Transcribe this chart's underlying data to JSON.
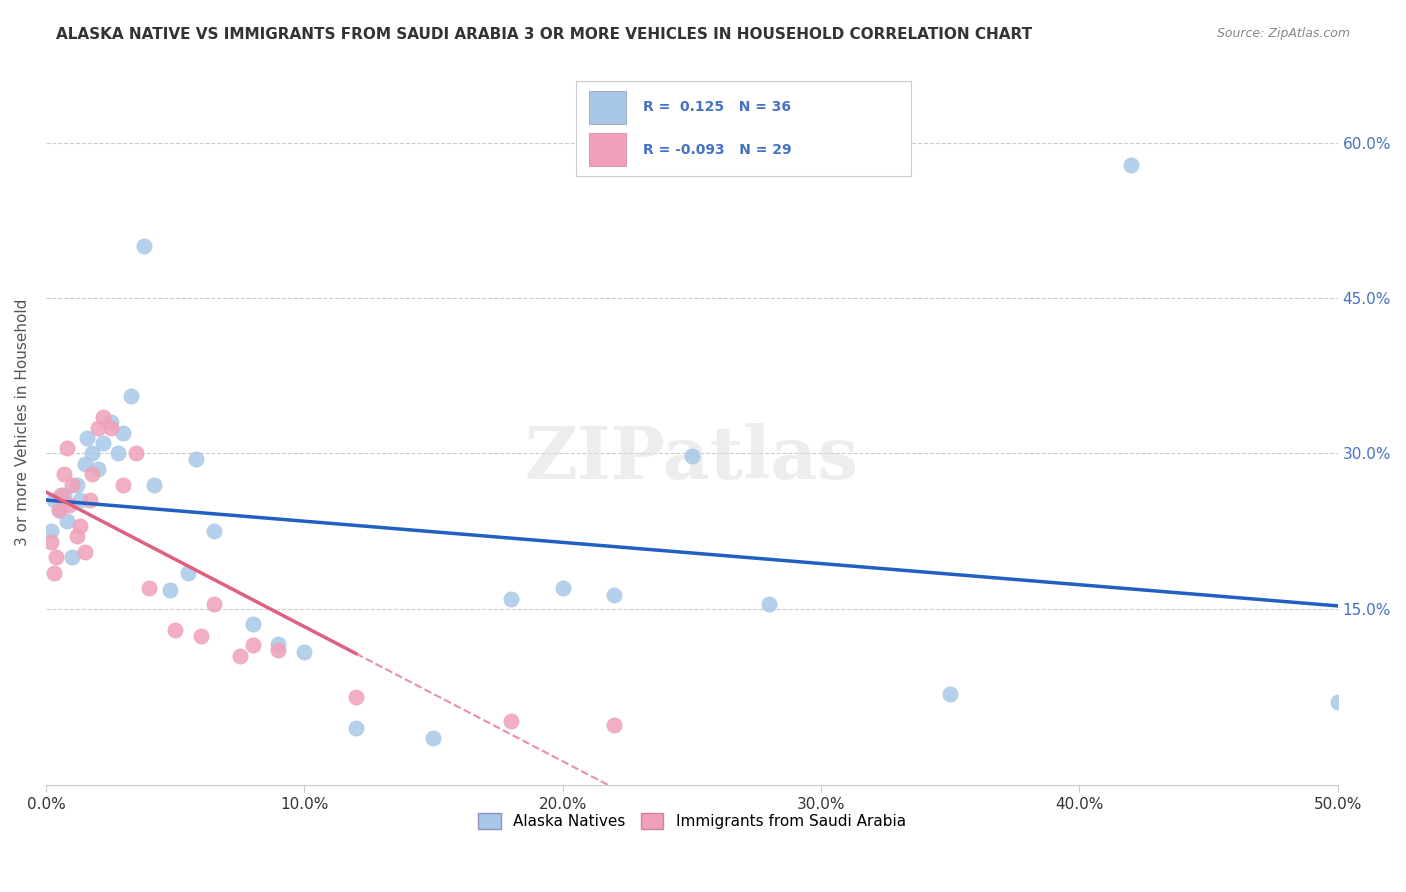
{
  "title": "ALASKA NATIVE VS IMMIGRANTS FROM SAUDI ARABIA 3 OR MORE VEHICLES IN HOUSEHOLD CORRELATION CHART",
  "source": "Source: ZipAtlas.com",
  "ylabel": "3 or more Vehicles in Household",
  "ytick_labels": [
    "15.0%",
    "30.0%",
    "45.0%",
    "60.0%"
  ],
  "ytick_values": [
    0.15,
    0.3,
    0.45,
    0.6
  ],
  "xtick_labels": [
    "0.0%",
    "10.0%",
    "20.0%",
    "30.0%",
    "40.0%",
    "50.0%"
  ],
  "xtick_values": [
    0.0,
    0.1,
    0.2,
    0.3,
    0.4,
    0.5
  ],
  "xlim": [
    0.0,
    0.5
  ],
  "ylim": [
    -0.02,
    0.68
  ],
  "legend_label1": "Alaska Natives",
  "legend_label2": "Immigrants from Saudi Arabia",
  "R1": 0.125,
  "N1": 36,
  "R2": -0.093,
  "N2": 29,
  "color_blue": "#A8C8E8",
  "color_pink": "#F0A0B8",
  "line_blue": "#2060C0",
  "line_pink": "#E06080",
  "alaska_x": [
    0.002,
    0.003,
    0.005,
    0.007,
    0.008,
    0.01,
    0.012,
    0.013,
    0.015,
    0.016,
    0.018,
    0.02,
    0.022,
    0.025,
    0.028,
    0.03,
    0.033,
    0.038,
    0.042,
    0.048,
    0.055,
    0.058,
    0.065,
    0.08,
    0.09,
    0.1,
    0.12,
    0.15,
    0.18,
    0.2,
    0.22,
    0.25,
    0.28,
    0.35,
    0.42,
    0.5
  ],
  "alaska_y": [
    0.225,
    0.255,
    0.245,
    0.26,
    0.235,
    0.2,
    0.27,
    0.255,
    0.29,
    0.315,
    0.3,
    0.285,
    0.31,
    0.33,
    0.3,
    0.32,
    0.355,
    0.5,
    0.27,
    0.168,
    0.185,
    0.295,
    0.225,
    0.135,
    0.116,
    0.108,
    0.035,
    0.025,
    0.16,
    0.17,
    0.163,
    0.298,
    0.155,
    0.068,
    0.578,
    0.06
  ],
  "saudi_x": [
    0.002,
    0.003,
    0.004,
    0.005,
    0.006,
    0.007,
    0.008,
    0.009,
    0.01,
    0.012,
    0.013,
    0.015,
    0.017,
    0.018,
    0.02,
    0.022,
    0.025,
    0.03,
    0.035,
    0.04,
    0.05,
    0.06,
    0.065,
    0.075,
    0.08,
    0.09,
    0.12,
    0.18,
    0.22
  ],
  "saudi_y": [
    0.215,
    0.185,
    0.2,
    0.245,
    0.26,
    0.28,
    0.305,
    0.25,
    0.27,
    0.22,
    0.23,
    0.205,
    0.255,
    0.28,
    0.325,
    0.335,
    0.325,
    0.27,
    0.3,
    0.17,
    0.13,
    0.124,
    0.155,
    0.105,
    0.115,
    0.11,
    0.065,
    0.042,
    0.038
  ],
  "watermark": "ZIPatlas",
  "background_color": "#FFFFFF"
}
